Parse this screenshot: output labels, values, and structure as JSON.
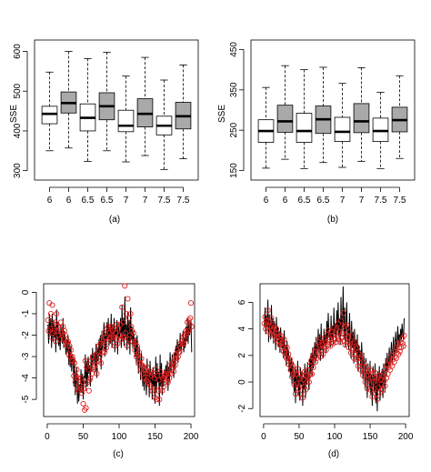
{
  "chart_data": [
    {
      "panel": "a",
      "caption": "(a)",
      "type": "boxplot",
      "ylabel": "SSE",
      "ylim": [
        290,
        615
      ],
      "yticks": [
        "300",
        "400",
        "500",
        "600"
      ],
      "categories": [
        "6",
        "6",
        "6.5",
        "6.5",
        "7",
        "7",
        "7.5",
        "7.5"
      ],
      "fill_colors": [
        "#ffffff",
        "#a9a9a9"
      ],
      "boxes": [
        {
          "whisker_low": 350,
          "q1": 418,
          "median": 443,
          "q3": 462,
          "whisker_high": 548
        },
        {
          "whisker_low": 357,
          "q1": 445,
          "median": 470,
          "q3": 498,
          "whisker_high": 600
        },
        {
          "whisker_low": 323,
          "q1": 400,
          "median": 433,
          "q3": 468,
          "whisker_high": 582
        },
        {
          "whisker_low": 350,
          "q1": 428,
          "median": 462,
          "q3": 496,
          "whisker_high": 598
        },
        {
          "whisker_low": 322,
          "q1": 398,
          "median": 413,
          "q3": 452,
          "whisker_high": 538
        },
        {
          "whisker_low": 338,
          "q1": 410,
          "median": 443,
          "q3": 481,
          "whisker_high": 585
        },
        {
          "whisker_low": 303,
          "q1": 390,
          "median": 413,
          "q3": 437,
          "whisker_high": 528
        },
        {
          "whisker_low": 330,
          "q1": 405,
          "median": 437,
          "q3": 472,
          "whisker_high": 566
        }
      ]
    },
    {
      "panel": "b",
      "caption": "(b)",
      "type": "boxplot",
      "ylabel": "SSE",
      "ylim": [
        140,
        460
      ],
      "yticks": [
        "150",
        "250",
        "350",
        "450"
      ],
      "categories": [
        "6",
        "6",
        "6.5",
        "6.5",
        "7",
        "7",
        "7.5",
        "7.5"
      ],
      "fill_colors": [
        "#ffffff",
        "#a9a9a9"
      ],
      "boxes": [
        {
          "whisker_low": 156,
          "q1": 220,
          "median": 248,
          "q3": 276,
          "whisker_high": 356
        },
        {
          "whisker_low": 178,
          "q1": 245,
          "median": 272,
          "q3": 312,
          "whisker_high": 410
        },
        {
          "whisker_low": 155,
          "q1": 220,
          "median": 248,
          "q3": 292,
          "whisker_high": 400
        },
        {
          "whisker_low": 170,
          "q1": 242,
          "median": 277,
          "q3": 310,
          "whisker_high": 406
        },
        {
          "whisker_low": 158,
          "q1": 222,
          "median": 246,
          "q3": 282,
          "whisker_high": 366
        },
        {
          "whisker_low": 173,
          "q1": 244,
          "median": 272,
          "q3": 316,
          "whisker_high": 405
        },
        {
          "whisker_low": 155,
          "q1": 222,
          "median": 248,
          "q3": 280,
          "whisker_high": 344
        },
        {
          "whisker_low": 180,
          "q1": 246,
          "median": 275,
          "q3": 307,
          "whisker_high": 385
        }
      ]
    },
    {
      "panel": "c",
      "caption": "(c)",
      "type": "line",
      "xlim": [
        -5,
        205
      ],
      "ylim": [
        -5.8,
        0.4
      ],
      "xticks": [
        "0",
        "50",
        "100",
        "150",
        "200"
      ],
      "yticks": [
        "-5",
        "-4",
        "-3",
        "-2",
        "-1",
        "0"
      ],
      "series": [
        {
          "style": "line",
          "color": "#000000",
          "x_start": 1,
          "x_step": 1,
          "values": [
            -1.5,
            -2.4,
            -1.0,
            -2.0,
            -1.2,
            -2.6,
            -1.0,
            -2.3,
            -1.3,
            -2.1,
            -1.6,
            -2.8,
            -0.8,
            -2.2,
            -1.4,
            -2.5,
            -1.9,
            -2.7,
            -1.5,
            -2.0,
            -2.4,
            -1.2,
            -2.6,
            -1.8,
            -2.1,
            -2.9,
            -2.2,
            -2.8,
            -2.0,
            -3.4,
            -2.3,
            -3.5,
            -2.5,
            -3.7,
            -2.9,
            -3.1,
            -4.4,
            -3.0,
            -4.8,
            -4.2,
            -3.5,
            -5.2,
            -4.0,
            -5.1,
            -4.3,
            -4.6,
            -3.6,
            -4.7,
            -3.8,
            -5.0,
            -3.9,
            -4.0,
            -2.9,
            -4.6,
            -3.2,
            -4.4,
            -3.0,
            -3.8,
            -3.4,
            -4.4,
            -2.9,
            -3.7,
            -2.6,
            -3.4,
            -3.1,
            -2.8,
            -3.7,
            -2.4,
            -4.0,
            -2.6,
            -3.2,
            -2.2,
            -3.0,
            -2.0,
            -3.6,
            -1.8,
            -2.7,
            -2.1,
            -1.4,
            -3.0,
            -1.9,
            -2.8,
            -1.4,
            -2.2,
            -1.2,
            -2.5,
            -1.6,
            -2.4,
            -1.0,
            -2.6,
            -1.5,
            -2.3,
            -1.2,
            -2.8,
            -1.7,
            -2.0,
            -1.3,
            -2.9,
            -1.4,
            -2.2,
            -1.9,
            -1.2,
            -2.6,
            -0.6,
            -2.3,
            -1.2,
            -2.5,
            -0.2,
            -2.1,
            -1.5,
            -2.7,
            -0.9,
            -2.4,
            -1.3,
            -2.9,
            -0.7,
            -2.2,
            -1.6,
            -2.6,
            -1.8,
            -2.3,
            -3.0,
            -2.1,
            -3.4,
            -2.0,
            -2.9,
            -3.8,
            -2.5,
            -3.2,
            -4.1,
            -2.8,
            -3.6,
            -4.4,
            -3.3,
            -4.6,
            -3.4,
            -3.9,
            -4.8,
            -3.1,
            -4.3,
            -3.6,
            -4.9,
            -3.2,
            -4.2,
            -3.7,
            -5.0,
            -3.5,
            -4.4,
            -3.8,
            -5.2,
            -3.0,
            -4.7,
            -3.3,
            -4.2,
            -3.7,
            -5.3,
            -2.9,
            -4.4,
            -3.3,
            -4.8,
            -3.9,
            -4.4,
            -3.6,
            -4.0,
            -3.4,
            -4.1,
            -3.2,
            -4.6,
            -3.5,
            -4.2,
            -2.8,
            -3.7,
            -3.4,
            -2.9,
            -3.2,
            -4.0,
            -2.8,
            -3.6,
            -2.5,
            -3.0,
            -2.2,
            -3.3,
            -2.4,
            -2.7,
            -1.9,
            -2.9,
            -2.3,
            -2.5,
            -1.8,
            -2.8,
            -2.1,
            -2.6,
            -1.6,
            -2.3,
            -1.2,
            -2.4,
            -1.3,
            -2.0,
            -1.6,
            -1.3,
            -2.8
          ]
        },
        {
          "style": "points",
          "color": "#e02020",
          "x_start": 1,
          "x_step": 1,
          "values": [
            -1.3,
            -1.8,
            -0.5,
            -1.7,
            -1.0,
            -2.1,
            -0.6,
            -1.9,
            -1.5,
            -1.8,
            -1.4,
            -2.3,
            -1.0,
            -1.8,
            -1.6,
            -2.0,
            -1.7,
            -2.2,
            -1.4,
            -1.9,
            -2.0,
            -1.6,
            -2.2,
            -1.8,
            -2.0,
            -2.4,
            -2.3,
            -2.5,
            -2.3,
            -2.9,
            -2.5,
            -3.0,
            -2.7,
            -3.2,
            -3.0,
            -3.2,
            -3.9,
            -3.3,
            -4.2,
            -3.9,
            -3.6,
            -4.5,
            -4.0,
            -4.6,
            -4.3,
            -4.5,
            -4.0,
            -4.7,
            -4.2,
            -5.2,
            -4.5,
            -5.5,
            -3.2,
            -5.4,
            -3.5,
            -4.2,
            -3.6,
            -4.6,
            -4.1,
            -4.0,
            -3.2,
            -3.8,
            -3.0,
            -3.5,
            -3.2,
            -3.4,
            -3.6,
            -2.9,
            -3.8,
            -2.8,
            -3.2,
            -2.5,
            -3.0,
            -2.4,
            -3.3,
            -2.2,
            -2.8,
            -2.3,
            -1.9,
            -2.8,
            -2.1,
            -2.6,
            -1.7,
            -2.3,
            -1.6,
            -2.2,
            -1.9,
            -2.1,
            -1.6,
            -2.0,
            -1.8,
            -2.1,
            -1.7,
            -2.5,
            -1.9,
            -2.2,
            -1.5,
            -2.4,
            -1.7,
            -2.0,
            -2.0,
            -1.5,
            -2.2,
            -0.7,
            -2.1,
            -1.4,
            -2.1,
            0.3,
            -1.9,
            -1.0,
            -2.5,
            -0.3,
            -2.2,
            -1.2,
            -2.0,
            -1.0,
            -1.6,
            -1.8,
            -2.3,
            -1.9,
            -2.4,
            -2.7,
            -2.3,
            -3.0,
            -2.5,
            -2.9,
            -3.3,
            -2.8,
            -3.3,
            -3.6,
            -3.1,
            -3.4,
            -3.8,
            -3.5,
            -4.0,
            -3.6,
            -3.8,
            -4.1,
            -3.5,
            -4.2,
            -3.8,
            -4.3,
            -3.7,
            -4.4,
            -3.9,
            -4.6,
            -3.8,
            -4.5,
            -4.0,
            -4.9,
            -3.6,
            -5.0,
            -3.9,
            -4.6,
            -4.1,
            -5.0,
            -3.7,
            -4.5,
            -3.9,
            -4.6,
            -4.0,
            -4.4,
            -3.9,
            -4.2,
            -3.8,
            -4.1,
            -3.7,
            -4.2,
            -3.8,
            -4.0,
            -3.4,
            -3.8,
            -3.6,
            -3.3,
            -3.5,
            -3.7,
            -3.1,
            -3.4,
            -2.9,
            -3.1,
            -2.7,
            -3.0,
            -2.8,
            -2.8,
            -2.4,
            -2.6,
            -2.3,
            -2.4,
            -2.1,
            -2.4,
            -2.0,
            -2.2,
            -1.8,
            -1.9,
            -1.4,
            -1.8,
            -1.3,
            -1.5,
            -1.2,
            -0.5,
            -1.6
          ]
        }
      ]
    },
    {
      "panel": "d",
      "caption": "(d)",
      "type": "line",
      "xlim": [
        -5,
        205
      ],
      "ylim": [
        -2.6,
        7.4
      ],
      "xticks": [
        "0",
        "50",
        "100",
        "150",
        "200"
      ],
      "yticks": [
        "-2",
        "0",
        "2",
        "4",
        "6"
      ],
      "series": [
        {
          "style": "line",
          "color": "#000000",
          "x_start": 1,
          "x_step": 1,
          "values": [
            4.2,
            5.6,
            3.6,
            5.0,
            4.1,
            6.2,
            3.0,
            5.1,
            4.4,
            3.2,
            5.8,
            3.5,
            4.8,
            2.9,
            4.6,
            3.8,
            2.4,
            4.9,
            3.3,
            4.2,
            2.6,
            3.8,
            2.2,
            4.1,
            3.0,
            2.5,
            3.4,
            1.8,
            3.9,
            2.0,
            2.8,
            1.2,
            3.1,
            1.6,
            2.4,
            0.8,
            2.0,
            0.4,
            1.8,
            -0.2,
            1.5,
            0.6,
            -0.8,
            1.2,
            -1.6,
            0.9,
            -0.4,
            1.6,
            -1.0,
            0.5,
            -1.4,
            1.1,
            -0.2,
            0.8,
            -1.8,
            0.4,
            -0.6,
            1.4,
            -1.2,
            0.9,
            -0.2,
            1.5,
            0.2,
            -0.6,
            1.8,
            0.6,
            2.2,
            0.4,
            2.6,
            1.0,
            2.0,
            3.0,
            1.4,
            3.4,
            1.8,
            2.6,
            4.0,
            2.2,
            3.6,
            1.6,
            4.4,
            2.4,
            3.2,
            1.8,
            4.0,
            2.8,
            3.6,
            2.2,
            4.6,
            3.0,
            5.2,
            3.4,
            3.8,
            2.6,
            5.0,
            3.2,
            4.2,
            2.8,
            5.6,
            3.6,
            4.4,
            3.0,
            5.4,
            3.8,
            6.0,
            3.4,
            4.8,
            2.8,
            6.4,
            3.6,
            4.6,
            7.2,
            3.2,
            5.6,
            2.6,
            4.4,
            6.0,
            3.0,
            4.2,
            2.4,
            5.2,
            3.4,
            1.8,
            4.6,
            2.6,
            3.8,
            1.4,
            4.0,
            2.2,
            3.2,
            1.6,
            3.6,
            0.8,
            2.8,
            1.8,
            2.4,
            0.6,
            3.0,
            1.4,
            0.2,
            2.2,
            1.0,
            -0.6,
            1.8,
            0.8,
            -1.2,
            1.4,
            0.4,
            -0.4,
            1.6,
            -1.0,
            0.6,
            -1.8,
            1.2,
            0.2,
            -0.8,
            1.4,
            -1.6,
            0.4,
            -2.2,
            0.8,
            -0.6,
            1.2,
            -1.4,
            0.6,
            -0.4,
            1.0,
            -1.2,
            1.4,
            0.2,
            -0.8,
            1.8,
            0.4,
            2.2,
            0.8,
            1.6,
            2.6,
            1.2,
            2.0,
            3.0,
            1.4,
            2.4,
            3.4,
            1.8,
            2.6,
            3.8,
            2.2,
            3.0,
            4.2,
            2.6,
            3.6,
            2.8,
            4.0,
            3.2,
            4.4,
            3.6,
            3.2,
            4.8
          ]
        },
        {
          "style": "points",
          "color": "#e02020",
          "x_start": 1,
          "x_step": 1,
          "values": [
            4.4,
            4.9,
            4.0,
            4.6,
            4.2,
            5.4,
            3.8,
            4.6,
            4.2,
            3.6,
            4.8,
            3.9,
            4.3,
            3.5,
            4.1,
            3.7,
            3.2,
            4.0,
            3.4,
            3.7,
            3.0,
            3.4,
            2.8,
            3.5,
            2.9,
            2.6,
            3.0,
            2.3,
            3.2,
            2.2,
            2.5,
            1.8,
            2.6,
            1.8,
            2.1,
            1.3,
            1.7,
            0.9,
            1.4,
            0.4,
            1.2,
            0.6,
            -0.2,
            0.8,
            -0.9,
            0.6,
            -0.1,
            1.0,
            -0.5,
            0.3,
            -0.9,
            0.6,
            -0.1,
            0.4,
            -1.2,
            0.2,
            -0.4,
            0.8,
            -0.6,
            0.5,
            0.0,
            0.9,
            0.4,
            0.0,
            1.2,
            0.6,
            1.6,
            0.6,
            1.9,
            1.1,
            1.7,
            2.3,
            1.5,
            2.6,
            1.8,
            2.3,
            3.0,
            2.2,
            2.8,
            1.9,
            3.3,
            2.4,
            2.8,
            2.1,
            3.2,
            2.6,
            3.0,
            2.4,
            3.6,
            2.8,
            3.9,
            3.0,
            3.2,
            2.7,
            3.8,
            3.0,
            3.5,
            2.9,
            4.1,
            3.3,
            3.6,
            3.0,
            4.0,
            3.4,
            4.4,
            3.2,
            3.8,
            3.0,
            4.6,
            3.3,
            3.7,
            5.2,
            3.1,
            4.2,
            2.8,
            3.6,
            4.3,
            3.0,
            3.4,
            2.6,
            3.8,
            2.9,
            2.2,
            3.4,
            2.4,
            2.9,
            1.8,
            3.0,
            2.1,
            2.5,
            1.7,
            2.6,
            1.2,
            2.1,
            1.5,
            1.8,
            0.9,
            2.0,
            1.2,
            0.5,
            1.4,
            0.8,
            0.0,
            1.1,
            0.5,
            -0.5,
            0.8,
            0.2,
            -0.2,
            0.9,
            -0.6,
            0.3,
            -1.1,
            0.6,
            0.0,
            -0.5,
            0.7,
            -0.9,
            0.1,
            -1.3,
            0.3,
            -0.4,
            0.5,
            -0.8,
            0.2,
            -0.2,
            0.5,
            -0.6,
            0.7,
            0.1,
            -0.3,
            1.0,
            0.3,
            1.3,
            0.6,
            1.1,
            1.6,
            0.9,
            1.4,
            2.0,
            1.2,
            1.7,
            2.3,
            1.5,
            1.9,
            2.6,
            1.8,
            2.2,
            2.9,
            2.1,
            2.6,
            2.3,
            3.0,
            2.6,
            3.3,
            2.9,
            2.7,
            3.5
          ]
        }
      ]
    }
  ]
}
